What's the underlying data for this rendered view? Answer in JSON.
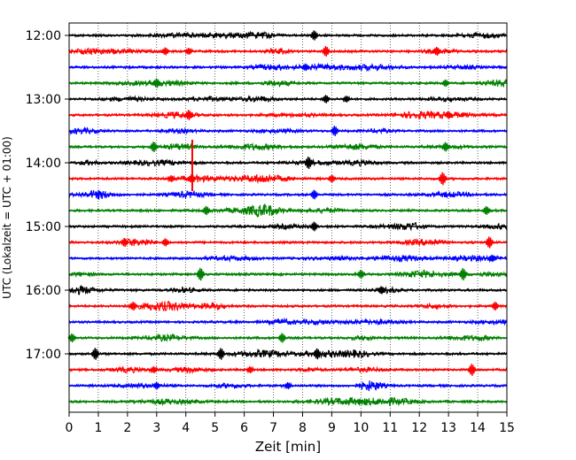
{
  "chart_data": {
    "type": "line",
    "title": "",
    "xlabel": "Zeit  [min]",
    "ylabel": "UTC (Lokalzeit = UTC + 01:00)",
    "xlim": [
      0,
      15
    ],
    "x_ticks": [
      "0",
      "1",
      "2",
      "3",
      "4",
      "5",
      "6",
      "7",
      "8",
      "9",
      "10",
      "11",
      "12",
      "13",
      "14",
      "15"
    ],
    "y_ticks": [
      {
        "label": "12:00",
        "trace": 0
      },
      {
        "label": "13:00",
        "trace": 4
      },
      {
        "label": "14:00",
        "trace": 8
      },
      {
        "label": "15:00",
        "trace": 12
      },
      {
        "label": "16:00",
        "trace": 16
      },
      {
        "label": "17:00",
        "trace": 20
      }
    ],
    "grid_x": true,
    "color_cycle": [
      "#000000",
      "#ff0000",
      "#0000ff",
      "#008000"
    ],
    "traces": [
      {
        "start": "12:00",
        "color": "#000000",
        "events": [
          8.4
        ]
      },
      {
        "start": "12:15",
        "color": "#ff0000",
        "events": [
          4.1,
          3.3,
          8.8,
          12.6
        ]
      },
      {
        "start": "12:30",
        "color": "#0000ff",
        "events": [
          8.1
        ]
      },
      {
        "start": "12:45",
        "color": "#008000",
        "events": [
          3.0,
          12.9
        ]
      },
      {
        "start": "13:00",
        "color": "#000000",
        "events": [
          8.8,
          9.5
        ]
      },
      {
        "start": "13:15",
        "color": "#ff0000",
        "events": [
          4.1,
          13.0
        ]
      },
      {
        "start": "13:30",
        "color": "#0000ff",
        "events": [
          9.1
        ]
      },
      {
        "start": "13:45",
        "color": "#008000",
        "events": [
          2.9,
          12.9
        ]
      },
      {
        "start": "14:00",
        "color": "#000000",
        "events": [
          8.2
        ]
      },
      {
        "start": "14:15",
        "color": "#ff0000",
        "events": [
          4.2,
          3.5,
          9.0,
          12.8
        ]
      },
      {
        "start": "14:30",
        "color": "#0000ff",
        "events": [
          8.4
        ]
      },
      {
        "start": "14:45",
        "color": "#008000",
        "events": [
          4.7,
          14.3
        ]
      },
      {
        "start": "15:00",
        "color": "#000000",
        "events": [
          8.4
        ]
      },
      {
        "start": "15:15",
        "color": "#ff0000",
        "events": [
          1.9,
          3.3,
          14.4
        ]
      },
      {
        "start": "15:30",
        "color": "#0000ff",
        "events": [
          14.5
        ]
      },
      {
        "start": "15:45",
        "color": "#008000",
        "events": [
          4.5,
          10.0,
          13.5
        ]
      },
      {
        "start": "16:00",
        "color": "#000000",
        "events": [
          10.7
        ]
      },
      {
        "start": "16:15",
        "color": "#ff0000",
        "events": [
          2.2,
          14.6
        ]
      },
      {
        "start": "16:30",
        "color": "#0000ff",
        "events": []
      },
      {
        "start": "16:45",
        "color": "#008000",
        "events": [
          0.1,
          7.3
        ]
      },
      {
        "start": "17:00",
        "color": "#000000",
        "events": [
          0.9,
          5.2,
          8.5
        ]
      },
      {
        "start": "17:15",
        "color": "#ff0000",
        "events": [
          2.9,
          6.2,
          13.8
        ]
      },
      {
        "start": "17:30",
        "color": "#0000ff",
        "events": [
          3.0,
          7.5
        ]
      },
      {
        "start": "17:45",
        "color": "#008000",
        "events": []
      }
    ]
  }
}
